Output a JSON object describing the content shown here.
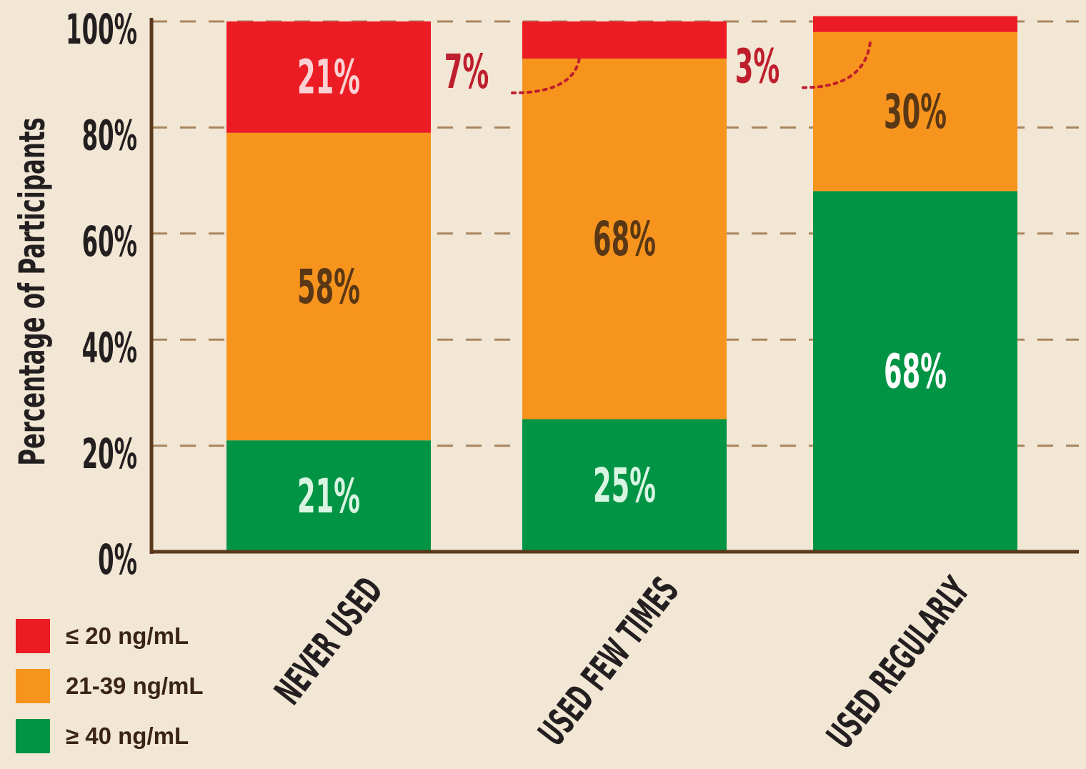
{
  "colors": {
    "low": "#ec1c24",
    "mid": "#f7941d",
    "high": "#009444",
    "axis": "#5b3a1c",
    "grid": "#a8865f",
    "axis_text": "#231f20",
    "label_dark": "#5a3715",
    "label_light_red": "#fbd1d3",
    "label_light_green": "#d8f5e2",
    "callout": "#be1e2d"
  },
  "chart_data": {
    "type": "bar",
    "stacked": true,
    "categories": [
      "NEVER USED",
      "USED FEW TIMES",
      "USED REGULARLY"
    ],
    "series": [
      {
        "name": "≥ 40 ng/mL",
        "key": "high",
        "values": [
          21,
          25,
          68
        ],
        "labels": [
          "21%",
          "25%",
          "68%"
        ]
      },
      {
        "name": "21-39 ng/mL",
        "key": "mid",
        "values": [
          58,
          68,
          30
        ],
        "labels": [
          "58%",
          "68%",
          "30%"
        ]
      },
      {
        "name": "≤ 20 ng/mL",
        "key": "low",
        "values": [
          21,
          7,
          3
        ],
        "labels": [
          "21%",
          "7%",
          "3%"
        ]
      }
    ],
    "ylabel": "Percentage of Participants",
    "ylim": [
      0,
      100
    ],
    "yticks": [
      0,
      20,
      40,
      60,
      80,
      100
    ],
    "ytick_labels": [
      "0%",
      "20%",
      "40%",
      "60%",
      "80%",
      "100%"
    ],
    "grid": true,
    "legend": {
      "placement": "bottom-left",
      "entries": [
        "≤ 20 ng/mL",
        "21-39 ng/mL",
        "≥ 40 ng/mL"
      ]
    }
  }
}
